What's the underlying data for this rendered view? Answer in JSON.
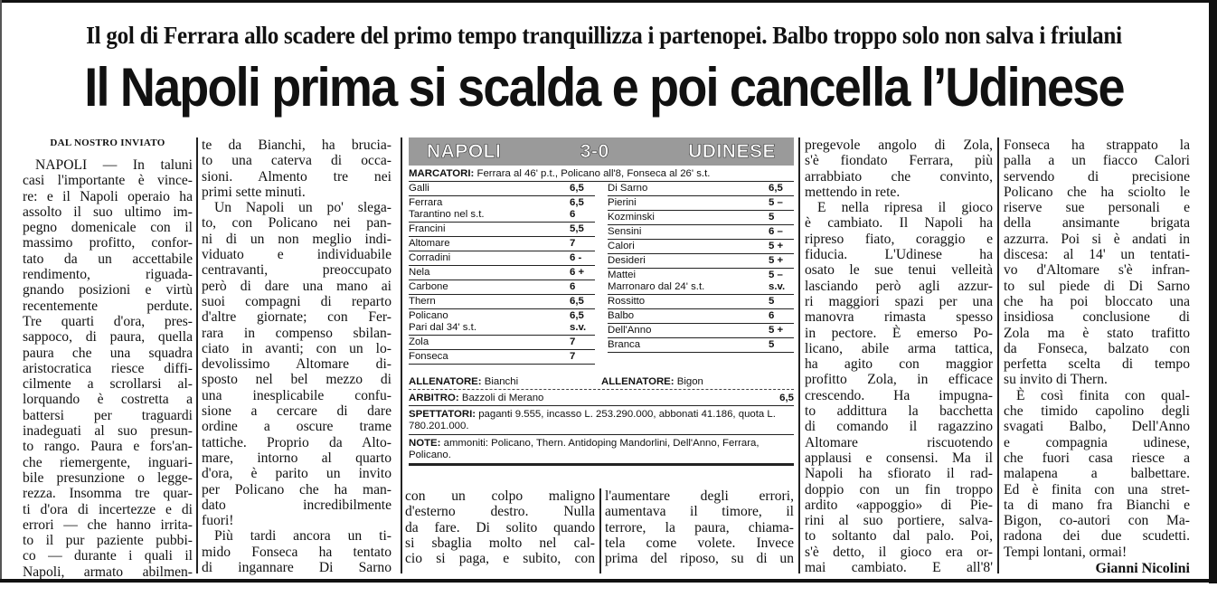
{
  "subhead": "Il gol di Ferrara allo scadere del primo tempo tranquillizza i partenopei. Balbo troppo solo non salva i friulani",
  "headline": "Il Napoli prima si scalda e poi cancella l’Udinese",
  "dateline": "DAL NOSTRO INVIATO",
  "byline": "Gianni Nicolini",
  "columns": [
    {
      "paragraphs": [
        [
          "NAPOLI — In taluni",
          "casi l'importante è vince-",
          "re: e il Napoli operaio ha",
          "assolto il suo ultimo im-",
          "pegno domenicale con il",
          "massimo profitto, confor-",
          "tato da un accettabile",
          "rendimento, riguada-",
          "gnando posizioni e virtù",
          "recentemente perdute.",
          "Tre quarti d'ora, pres-",
          "sappoco, di paura, quella",
          "paura che una squadra",
          "aristocratica riesce diffi-",
          "cilmente a scrollarsi al-",
          "lorquando è costretta a",
          "battersi per traguardi",
          "inadeguati al suo presun-",
          "to rango. Paura e fors'an-",
          "che riemergente, inguari-",
          "bile presunzione o legge-",
          "rezza. Insomma tre quar-",
          "ti d'ora di incertezze e di",
          "errori — che hanno irrita-",
          "to il pur paziente pubbi-",
          "co — durante i quali il",
          "Napoli, armato abilmen-"
        ]
      ]
    },
    {
      "paragraphs": [
        [
          "te da Bianchi, ha brucia-",
          "to una caterva di occa-",
          "sioni. Almento tre nei",
          "primi sette minuti."
        ],
        [
          "Un Napoli un po' slega-",
          "to, con Policano nei pan-",
          "ni di un non meglio indi-",
          "viduato e individuabile",
          "centravanti, preoccupato",
          "però di dare una mano ai",
          "suoi compagni di reparto",
          "d'altre giornate; con Fer-",
          "rara in compenso sbilan-",
          "ciato in avanti; con un lo-",
          "devolissimo Altomare di-",
          "sposto nel bel mezzo di",
          "una inesplicabile confu-",
          "sione a cercare di dare",
          "ordine a oscure trame",
          "tattiche. Proprio da Alto-",
          "mare, intorno al quarto",
          "d'ora, è parito un invito",
          "per Policano che ha man-",
          "dato incredibilmente",
          "fuori!"
        ],
        [
          "Più tardi ancora un ti-",
          "mido Fonseca ha tentato",
          "di ingannare Di Sarno"
        ]
      ]
    },
    {
      "paragraphs": [
        [
          "con un colpo maligno",
          "d'esterno destro. Nulla",
          "da fare. Di solito quando",
          "si sbaglia molto nel cal-",
          "cio si paga, e subito, con"
        ]
      ]
    },
    {
      "paragraphs": [
        [
          "l'aumentare degli errori,",
          "aumentava il timore, il",
          "terrore, la paura, chiama-",
          "tela come volete. Invece",
          "prima del riposo, su di un"
        ]
      ]
    },
    {
      "paragraphs": [
        [
          "pregevole angolo di Zola,",
          "s'è fiondato Ferrara, più",
          "arrabbiato che convinto,",
          "mettendo in rete."
        ],
        [
          "E nella ripresa il gioco",
          "è cambiato. Il Napoli ha",
          "ripreso fiato, coraggio e",
          "fiducia. L'Udinese ha",
          "osato le sue tenui velleità",
          "lasciando però agli azzur-",
          "ri maggiori spazi per una",
          "manovra rimasta spesso",
          "in pectore. È emerso Po-",
          "licano, abile arma tattica,",
          "ha agito con maggior",
          "profitto Zola, in efficace",
          "crescendo. Ha impugna-",
          "to addittura la bacchetta",
          "di comando il ragazzino",
          "Altomare riscuotendo",
          "applausi e consensi. Ma il",
          "Napoli ha sfiorato il rad-",
          "doppio con un fin troppo",
          "ardito «appoggio» di Pie-",
          "rini al suo portiere, salva-",
          "to soltanto dal palo. Poi,",
          "s'è detto, il gioco era or-",
          "mai cambiato. E all'8'"
        ]
      ]
    },
    {
      "paragraphs": [
        [
          "Fonseca ha strappato la",
          "palla a un fiacco Calori",
          "servendo di precisione",
          "Policano che ha sciolto le",
          "riserve sue personali e",
          "della ansimante brigata",
          "azzurra. Poi si è andati in",
          "discesa: al 14' un tentati-",
          "vo d'Altomare s'è infran-",
          "to sul piede di Di Sarno",
          "che ha poi bloccato una",
          "insidiosa conclusione di",
          "Zola ma è stato trafitto",
          "da Fonseca, balzato con",
          "perfetta scelta di tempo",
          "su invito di Thern."
        ],
        [
          "È così finita con qual-",
          "che timido capolino degli",
          "svagati Balbo, Dell'Anno",
          "e compagnia udinese,",
          "che fuori casa riesce a",
          "malapena a balbettare.",
          "Ed è finita con una stret-",
          "ta di mano fra Bianchi e",
          "Bigon, co-autori con Ma-",
          "radona dei due scudetti.",
          "Tempi lontani, ormai!"
        ]
      ]
    }
  ],
  "scorecard": {
    "home": "NAPOLI",
    "score": "3-0",
    "away": "UDINESE",
    "marcatori_label": "MARCATORI:",
    "marcatori": "Ferrara al 46' p.t., Policano all'8, Fonseca al 26' s.t.",
    "home_players": [
      {
        "name": "Galli",
        "vote": "6,5"
      },
      {
        "name": "Ferrara",
        "vote": "6,5",
        "sub": "Tarantino nel s.t.",
        "sub_vote": "6"
      },
      {
        "name": "Francini",
        "vote": "5,5"
      },
      {
        "name": "Altomare",
        "vote": "7"
      },
      {
        "name": "Corradini",
        "vote": "6 -"
      },
      {
        "name": "Nela",
        "vote": "6 +"
      },
      {
        "name": "Carbone",
        "vote": "6"
      },
      {
        "name": "Thern",
        "vote": "6,5"
      },
      {
        "name": "Policano",
        "vote": "6,5",
        "sub": "Pari dal 34' s.t.",
        "sub_vote": "s.v."
      },
      {
        "name": "Zola",
        "vote": "7"
      },
      {
        "name": "Fonseca",
        "vote": "7"
      }
    ],
    "away_players": [
      {
        "name": "Di Sarno",
        "vote": "6,5"
      },
      {
        "name": "Pierini",
        "vote": "5 –"
      },
      {
        "name": "Kozminski",
        "vote": "5"
      },
      {
        "name": "Sensini",
        "vote": "6 –"
      },
      {
        "name": "Calori",
        "vote": "5 +"
      },
      {
        "name": "Desideri",
        "vote": "5 +"
      },
      {
        "name": "Mattei",
        "vote": "5 –",
        "sub": "Marronaro dal 24' s.t.",
        "sub_vote": "s.v."
      },
      {
        "name": "Rossitto",
        "vote": "5"
      },
      {
        "name": "Balbo",
        "vote": "6"
      },
      {
        "name": "Dell'Anno",
        "vote": "5 +"
      },
      {
        "name": "Branca",
        "vote": "5"
      }
    ],
    "coach_label": "ALLENATORE:",
    "home_coach": "Bianchi",
    "away_coach": "Bigon",
    "arbitro_label": "ARBITRO:",
    "arbitro": "Bazzoli di Merano",
    "arbitro_vote": "6,5",
    "spettatori_label": "SPETTATORI:",
    "spettatori": "paganti 9.555, incasso L. 253.290.000, abbonati 41.186, quota L. 780.201.000.",
    "note_label": "NOTE:",
    "note": "ammoniti: Policano, Thern. Antidoping Mandorlini, Dell'Anno, Ferrara, Policano."
  }
}
